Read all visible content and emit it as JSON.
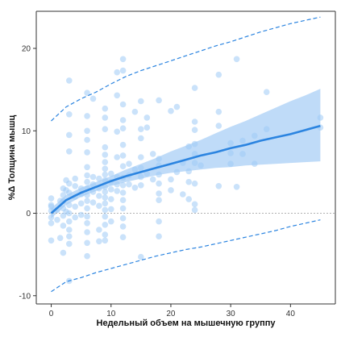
{
  "chart_data": {
    "type": "scatter",
    "title": "",
    "xlabel": "Недельный объем на мышечную группу",
    "ylabel": "%Δ Толщина мышц",
    "xlim": [
      -2.5,
      47.5
    ],
    "ylim": [
      -11,
      24.5
    ],
    "x_ticks": [
      0,
      10,
      20,
      30,
      40
    ],
    "y_ticks": [
      -10,
      0,
      10,
      20
    ],
    "grid": false,
    "legend": "none",
    "reference_line": {
      "y": 0,
      "style": "dotted",
      "color": "#b0b0b0"
    },
    "colors": {
      "points": "#9ecbf5",
      "fit": "#2b84e0",
      "band": "#a9cff5",
      "prediction": "#2b84e0"
    },
    "fit_curve": {
      "x": [
        0,
        2.5,
        5,
        7.5,
        10,
        12.5,
        15,
        17.5,
        20,
        22.5,
        25,
        27.5,
        30,
        32.5,
        35,
        37.5,
        40,
        42.5,
        45
      ],
      "y": [
        0,
        1.6,
        2.5,
        3.2,
        3.9,
        4.5,
        5.0,
        5.5,
        6.0,
        6.5,
        7.0,
        7.4,
        7.9,
        8.3,
        8.8,
        9.2,
        9.6,
        10.1,
        10.6
      ]
    },
    "confidence_band": {
      "x": [
        0,
        2.5,
        5,
        7.5,
        10,
        12.5,
        15,
        17.5,
        20,
        22.5,
        25,
        27.5,
        30,
        32.5,
        35,
        37.5,
        40,
        42.5,
        45
      ],
      "lower": [
        -0.6,
        1.0,
        2.0,
        2.7,
        3.3,
        3.8,
        4.2,
        4.6,
        4.9,
        5.1,
        5.3,
        5.5,
        5.6,
        5.8,
        5.9,
        6.0,
        6.1,
        6.2,
        6.3
      ],
      "upper": [
        0.6,
        2.2,
        3.1,
        3.8,
        4.5,
        5.3,
        6.0,
        6.7,
        7.5,
        8.2,
        8.9,
        9.7,
        10.5,
        11.2,
        12.0,
        12.8,
        13.6,
        14.3,
        15.1
      ]
    },
    "prediction_upper": {
      "x": [
        0,
        2.5,
        5,
        7.5,
        10,
        12.5,
        15,
        17.5,
        20,
        22.5,
        25,
        27.5,
        30,
        32.5,
        35,
        37.5,
        40,
        42.5,
        45
      ],
      "y": [
        11.2,
        12.9,
        13.9,
        14.7,
        15.7,
        16.6,
        17.3,
        17.9,
        18.5,
        19.1,
        19.7,
        20.3,
        20.8,
        21.4,
        22.0,
        22.5,
        23.0,
        23.4,
        23.8
      ]
    },
    "prediction_lower": {
      "x": [
        0,
        2.5,
        5,
        7.5,
        10,
        12.5,
        15,
        17.5,
        20,
        22.5,
        25,
        27.5,
        30,
        32.5,
        35,
        37.5,
        40,
        42.5,
        45
      ],
      "y": [
        -9.5,
        -8.3,
        -7.8,
        -7.2,
        -6.7,
        -6.2,
        -5.7,
        -5.2,
        -4.8,
        -4.4,
        -4.1,
        -3.7,
        -3.3,
        -2.9,
        -2.5,
        -2.1,
        -1.6,
        -1.2,
        -0.8
      ]
    },
    "points": [
      {
        "x": 0,
        "y": 1.8
      },
      {
        "x": 0,
        "y": 1.0
      },
      {
        "x": 0,
        "y": 0.3
      },
      {
        "x": 0,
        "y": -0.5
      },
      {
        "x": 0,
        "y": -1.2
      },
      {
        "x": 0,
        "y": -3.3
      },
      {
        "x": 0,
        "y": 0.8
      },
      {
        "x": 1,
        "y": 0.4
      },
      {
        "x": 1,
        "y": -0.8
      },
      {
        "x": 1.5,
        "y": -3.0
      },
      {
        "x": 1.5,
        "y": 1.5
      },
      {
        "x": 2,
        "y": 3.0
      },
      {
        "x": 2,
        "y": 2.2
      },
      {
        "x": 2,
        "y": 1.5
      },
      {
        "x": 2,
        "y": 0.6
      },
      {
        "x": 2,
        "y": -0.3
      },
      {
        "x": 2,
        "y": -1.5
      },
      {
        "x": 2,
        "y": -4.8
      },
      {
        "x": 2.5,
        "y": 4.0
      },
      {
        "x": 2.5,
        "y": 2.8
      },
      {
        "x": 2.5,
        "y": 0.2
      },
      {
        "x": 3,
        "y": 16.1
      },
      {
        "x": 3,
        "y": 12.0
      },
      {
        "x": 3,
        "y": 9.5
      },
      {
        "x": 3,
        "y": 7.5
      },
      {
        "x": 3,
        "y": 3.6
      },
      {
        "x": 3,
        "y": 2.5
      },
      {
        "x": 3,
        "y": 1.0
      },
      {
        "x": 3,
        "y": 0.0
      },
      {
        "x": 3,
        "y": -1.0
      },
      {
        "x": 3,
        "y": -2.0
      },
      {
        "x": 3,
        "y": -2.8
      },
      {
        "x": 3,
        "y": -3.7
      },
      {
        "x": 3,
        "y": -8.2
      },
      {
        "x": 4,
        "y": 4.2
      },
      {
        "x": 4,
        "y": 3.3
      },
      {
        "x": 4,
        "y": 2.0
      },
      {
        "x": 4,
        "y": 0.8
      },
      {
        "x": 4,
        "y": -0.5
      },
      {
        "x": 5,
        "y": 3.0
      },
      {
        "x": 5,
        "y": 2.3
      },
      {
        "x": 5,
        "y": 1.2
      },
      {
        "x": 5,
        "y": -0.2
      },
      {
        "x": 6,
        "y": 14.6
      },
      {
        "x": 6,
        "y": 11.8
      },
      {
        "x": 6,
        "y": 10.0
      },
      {
        "x": 6,
        "y": 8.9
      },
      {
        "x": 6,
        "y": 7.4
      },
      {
        "x": 6,
        "y": 5.6
      },
      {
        "x": 6,
        "y": 4.6
      },
      {
        "x": 6,
        "y": 3.8
      },
      {
        "x": 6,
        "y": 3.0
      },
      {
        "x": 6,
        "y": 2.2
      },
      {
        "x": 6,
        "y": 1.5
      },
      {
        "x": 6,
        "y": 0.6
      },
      {
        "x": 6,
        "y": -0.4
      },
      {
        "x": 6,
        "y": -1.2
      },
      {
        "x": 6,
        "y": -2.3
      },
      {
        "x": 6,
        "y": -3.6
      },
      {
        "x": 6,
        "y": -5.2
      },
      {
        "x": 7,
        "y": 13.9
      },
      {
        "x": 7,
        "y": 4.4
      },
      {
        "x": 7,
        "y": 3.5
      },
      {
        "x": 7,
        "y": 2.6
      },
      {
        "x": 7,
        "y": 1.3
      },
      {
        "x": 8,
        "y": 4.2
      },
      {
        "x": 8,
        "y": 3.0
      },
      {
        "x": 8,
        "y": 2.1
      },
      {
        "x": 8,
        "y": 0.9
      },
      {
        "x": 8,
        "y": -2.0
      },
      {
        "x": 8,
        "y": -3.4
      },
      {
        "x": 9,
        "y": 12.7
      },
      {
        "x": 9,
        "y": 11.6
      },
      {
        "x": 9,
        "y": 10.2
      },
      {
        "x": 9,
        "y": 8.0
      },
      {
        "x": 9,
        "y": 7.1
      },
      {
        "x": 9,
        "y": 6.2
      },
      {
        "x": 9,
        "y": 5.4
      },
      {
        "x": 9,
        "y": 4.7
      },
      {
        "x": 9,
        "y": 4.0
      },
      {
        "x": 9,
        "y": 3.2
      },
      {
        "x": 9,
        "y": 2.6
      },
      {
        "x": 9,
        "y": 1.9
      },
      {
        "x": 9,
        "y": 1.2
      },
      {
        "x": 9,
        "y": 0.4
      },
      {
        "x": 9,
        "y": -0.4
      },
      {
        "x": 9,
        "y": -1.4
      },
      {
        "x": 9,
        "y": -2.6
      },
      {
        "x": 9,
        "y": -3.3
      },
      {
        "x": 10,
        "y": 4.8
      },
      {
        "x": 10,
        "y": 3.8
      },
      {
        "x": 10,
        "y": 2.9
      },
      {
        "x": 10,
        "y": 1.7
      },
      {
        "x": 10,
        "y": 0.5
      },
      {
        "x": 10,
        "y": -1.0
      },
      {
        "x": 11,
        "y": 17.1
      },
      {
        "x": 11,
        "y": 14.3
      },
      {
        "x": 11,
        "y": 9.9
      },
      {
        "x": 11,
        "y": 6.8
      },
      {
        "x": 11,
        "y": 4.4
      },
      {
        "x": 11,
        "y": 3.5
      },
      {
        "x": 11,
        "y": 2.7
      },
      {
        "x": 12,
        "y": 18.7
      },
      {
        "x": 12,
        "y": 17.3
      },
      {
        "x": 12,
        "y": 13.2
      },
      {
        "x": 12,
        "y": 11.3
      },
      {
        "x": 12,
        "y": 10.3
      },
      {
        "x": 12,
        "y": 8.3
      },
      {
        "x": 12,
        "y": 7.0
      },
      {
        "x": 12,
        "y": 5.7
      },
      {
        "x": 12,
        "y": 4.3
      },
      {
        "x": 12,
        "y": 3.4
      },
      {
        "x": 12,
        "y": 2.5
      },
      {
        "x": 12,
        "y": 1.6
      },
      {
        "x": 12,
        "y": 0.6
      },
      {
        "x": 12,
        "y": -0.6
      },
      {
        "x": 12,
        "y": -1.6
      },
      {
        "x": 12,
        "y": -2.9
      },
      {
        "x": 13,
        "y": 6.0
      },
      {
        "x": 13,
        "y": 4.6
      },
      {
        "x": 13,
        "y": 3.5
      },
      {
        "x": 14,
        "y": 12.3
      },
      {
        "x": 14,
        "y": 5.3
      },
      {
        "x": 14,
        "y": 3.1
      },
      {
        "x": 15,
        "y": 13.6
      },
      {
        "x": 15,
        "y": 10.2
      },
      {
        "x": 15,
        "y": 9.1
      },
      {
        "x": 15,
        "y": 6.8
      },
      {
        "x": 15,
        "y": 5.5
      },
      {
        "x": 15,
        "y": 4.4
      },
      {
        "x": 15,
        "y": 3.4
      },
      {
        "x": 15,
        "y": -5.3
      },
      {
        "x": 16,
        "y": 11.6
      },
      {
        "x": 16,
        "y": 10.4
      },
      {
        "x": 16,
        "y": 4.8
      },
      {
        "x": 17,
        "y": 7.2
      },
      {
        "x": 17,
        "y": 4.1
      },
      {
        "x": 18,
        "y": 13.7
      },
      {
        "x": 18,
        "y": 6.6
      },
      {
        "x": 18,
        "y": 5.8
      },
      {
        "x": 18,
        "y": 4.7
      },
      {
        "x": 18,
        "y": 3.6
      },
      {
        "x": 18,
        "y": 2.4
      },
      {
        "x": 18,
        "y": 1.6
      },
      {
        "x": 18,
        "y": -1.0
      },
      {
        "x": 18,
        "y": -2.8
      },
      {
        "x": 20,
        "y": 12.4
      },
      {
        "x": 20,
        "y": 4.1
      },
      {
        "x": 20,
        "y": 2.8
      },
      {
        "x": 21,
        "y": 12.9
      },
      {
        "x": 21,
        "y": 5.0
      },
      {
        "x": 22,
        "y": 6.1
      },
      {
        "x": 22,
        "y": 2.3
      },
      {
        "x": 23,
        "y": 8.1
      },
      {
        "x": 23,
        "y": 5.1
      },
      {
        "x": 23,
        "y": 3.8
      },
      {
        "x": 23,
        "y": 1.7
      },
      {
        "x": 24,
        "y": 15.2
      },
      {
        "x": 24,
        "y": 11.1
      },
      {
        "x": 24,
        "y": 10.1
      },
      {
        "x": 24,
        "y": 8.4
      },
      {
        "x": 24,
        "y": 7.2
      },
      {
        "x": 24,
        "y": 6.1
      },
      {
        "x": 24,
        "y": 3.6
      },
      {
        "x": 24,
        "y": 1.1
      },
      {
        "x": 24,
        "y": 0.4
      },
      {
        "x": 25,
        "y": 5.8
      },
      {
        "x": 28,
        "y": 16.8
      },
      {
        "x": 28,
        "y": 12.3
      },
      {
        "x": 28,
        "y": 10.6
      },
      {
        "x": 28,
        "y": 3.3
      },
      {
        "x": 30,
        "y": 8.5
      },
      {
        "x": 30,
        "y": 7.3
      },
      {
        "x": 30,
        "y": 6.0
      },
      {
        "x": 31,
        "y": 18.7
      },
      {
        "x": 31,
        "y": 3.2
      },
      {
        "x": 32,
        "y": 8.8
      },
      {
        "x": 32,
        "y": 7.2
      },
      {
        "x": 34,
        "y": 9.4
      },
      {
        "x": 34,
        "y": 6.0
      },
      {
        "x": 36,
        "y": 14.7
      },
      {
        "x": 36,
        "y": 10.2
      },
      {
        "x": 45,
        "y": 11.6
      },
      {
        "x": 45,
        "y": 10.4
      }
    ]
  }
}
